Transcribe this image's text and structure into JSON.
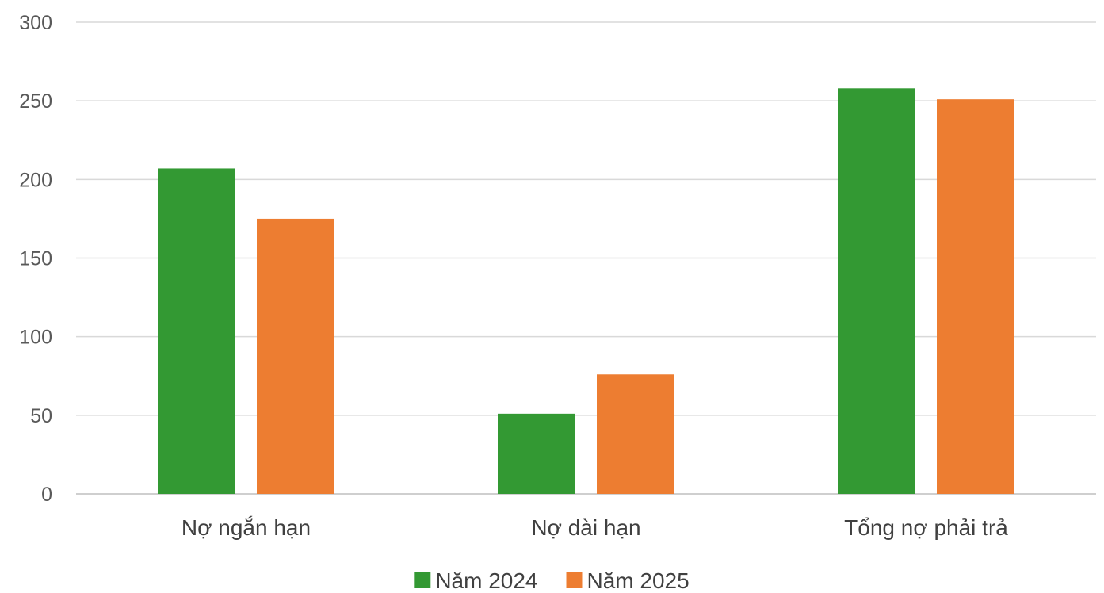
{
  "chart_data": {
    "type": "bar",
    "title": "",
    "categories": [
      "Nợ ngắn hạn",
      "Nợ dài hạn",
      "Tổng nợ phải trả"
    ],
    "series": [
      {
        "name": "Năm 2024",
        "color": "#339933",
        "values": [
          207,
          51,
          258
        ]
      },
      {
        "name": "Năm 2025",
        "color": "#ED7D31",
        "values": [
          175,
          76,
          251
        ]
      }
    ],
    "ylim": [
      0,
      300
    ],
    "yticks": [
      0,
      50,
      100,
      150,
      200,
      250,
      300
    ],
    "grid": true,
    "legend": "bottom"
  }
}
